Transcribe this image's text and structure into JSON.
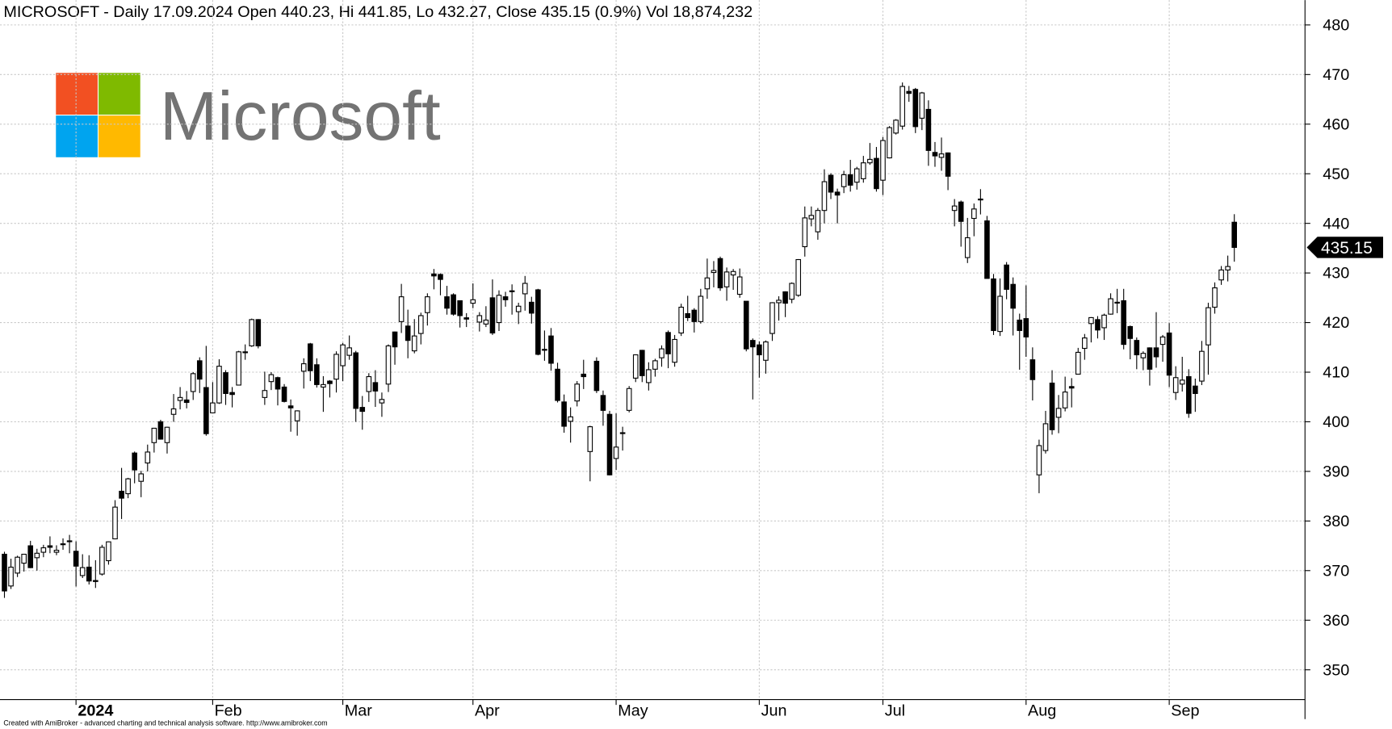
{
  "chart_data": {
    "type": "candlestick",
    "title": "MICROSOFT - Daily 17.09.2024 Open 440.23, Hi 441.85, Lo 432.27, Close 435.15 (0.9%) Vol 18,874,232",
    "categories": [
      null,
      null,
      null,
      null,
      null,
      null,
      null,
      null,
      null,
      null,
      null,
      "2024",
      null,
      null,
      null,
      null,
      null,
      null,
      null,
      null,
      null,
      null,
      null,
      null,
      null,
      null,
      null,
      null,
      null,
      null,
      null,
      null,
      "Feb",
      null,
      null,
      null,
      null,
      null,
      null,
      null,
      null,
      null,
      null,
      null,
      null,
      null,
      null,
      null,
      null,
      null,
      null,
      null,
      "Mar",
      null,
      null,
      null,
      null,
      null,
      null,
      null,
      null,
      null,
      null,
      null,
      null,
      null,
      null,
      null,
      null,
      null,
      null,
      null,
      "Apr",
      null,
      null,
      null,
      null,
      null,
      null,
      null,
      null,
      null,
      null,
      null,
      null,
      null,
      null,
      null,
      null,
      null,
      null,
      null,
      null,
      null,
      "May",
      null,
      null,
      null,
      null,
      null,
      null,
      null,
      null,
      null,
      null,
      null,
      null,
      null,
      null,
      null,
      null,
      null,
      null,
      null,
      null,
      null,
      "Jun",
      null,
      null,
      null,
      null,
      null,
      null,
      null,
      null,
      null,
      null,
      null,
      null,
      null,
      null,
      null,
      null,
      null,
      null,
      "Jul",
      null,
      null,
      null,
      null,
      null,
      null,
      null,
      null,
      null,
      null,
      null,
      null,
      null,
      null,
      null,
      null,
      null,
      null,
      null,
      null,
      null,
      "Aug",
      null,
      null,
      null,
      null,
      null,
      null,
      null,
      null,
      null,
      null,
      null,
      null,
      null,
      null,
      null,
      null,
      null,
      null,
      null,
      null,
      null,
      "Sep",
      null,
      null,
      null,
      null,
      null,
      null,
      null,
      null,
      null,
      null
    ],
    "ohlc": [
      [
        373.3,
        373.8,
        364.5,
        365.9
      ],
      [
        366.9,
        372.4,
        366.3,
        370.7
      ],
      [
        369.5,
        373.0,
        368.7,
        372.7
      ],
      [
        371.5,
        373.3,
        369.8,
        373.3
      ],
      [
        375.0,
        376.0,
        370.5,
        370.6
      ],
      [
        372.6,
        374.4,
        370.0,
        373.5
      ],
      [
        373.7,
        375.2,
        372.7,
        374.6
      ],
      [
        375.0,
        376.9,
        373.5,
        374.7
      ],
      [
        373.7,
        375.1,
        373.1,
        374.1
      ],
      [
        375.4,
        376.5,
        374.2,
        375.3
      ],
      [
        376.0,
        377.2,
        373.5,
        376.0
      ],
      [
        373.9,
        375.9,
        366.8,
        370.9
      ],
      [
        369.0,
        373.3,
        368.5,
        370.6
      ],
      [
        370.7,
        373.1,
        367.2,
        367.9
      ],
      [
        368.0,
        372.1,
        366.5,
        367.8
      ],
      [
        369.3,
        375.2,
        369.0,
        374.7
      ],
      [
        372.0,
        375.9,
        371.2,
        375.8
      ],
      [
        376.4,
        384.2,
        376.3,
        382.8
      ],
      [
        386.0,
        390.7,
        380.4,
        384.6
      ],
      [
        385.5,
        388.7,
        384.6,
        388.5
      ],
      [
        393.7,
        394.0,
        387.6,
        390.3
      ],
      [
        388.0,
        390.1,
        384.8,
        389.5
      ],
      [
        391.7,
        395.4,
        390.0,
        393.9
      ],
      [
        395.8,
        398.7,
        393.8,
        398.7
      ],
      [
        400.0,
        400.4,
        396.4,
        396.5
      ],
      [
        395.8,
        399.0,
        393.6,
        398.9
      ],
      [
        401.5,
        405.6,
        400.0,
        402.6
      ],
      [
        404.3,
        407.0,
        402.5,
        404.9
      ],
      [
        404.4,
        406.2,
        402.7,
        403.9
      ],
      [
        406.1,
        410.0,
        404.4,
        409.7
      ],
      [
        412.3,
        413.0,
        405.8,
        408.6
      ],
      [
        406.9,
        415.3,
        397.2,
        397.6
      ],
      [
        401.8,
        408.0,
        401.8,
        403.8
      ],
      [
        403.8,
        412.6,
        403.6,
        411.2
      ],
      [
        409.9,
        410.4,
        403.4,
        405.7
      ],
      [
        405.9,
        407.0,
        402.9,
        405.5
      ],
      [
        407.4,
        414.3,
        407.4,
        414.1
      ],
      [
        414.1,
        415.6,
        412.5,
        414.1
      ],
      [
        415.3,
        420.8,
        415.1,
        420.6
      ],
      [
        420.6,
        420.7,
        414.8,
        415.3
      ],
      [
        404.9,
        410.1,
        403.4,
        406.3
      ],
      [
        408.1,
        410.0,
        406.4,
        409.5
      ],
      [
        408.9,
        409.1,
        403.3,
        406.6
      ],
      [
        407.0,
        407.6,
        403.9,
        404.1
      ],
      [
        403.2,
        404.5,
        398.0,
        402.8
      ],
      [
        400.2,
        402.3,
        397.2,
        402.2
      ],
      [
        410.2,
        412.8,
        406.7,
        411.7
      ],
      [
        415.7,
        415.9,
        408.2,
        410.3
      ],
      [
        411.5,
        412.8,
        406.9,
        407.5
      ],
      [
        407.0,
        409.2,
        402.0,
        407.5
      ],
      [
        408.2,
        408.4,
        404.9,
        407.7
      ],
      [
        408.6,
        414.2,
        405.9,
        413.6
      ],
      [
        411.3,
        415.9,
        408.2,
        415.5
      ],
      [
        413.4,
        417.4,
        412.5,
        414.9
      ],
      [
        413.9,
        414.3,
        400.0,
        402.7
      ],
      [
        402.9,
        405.2,
        398.4,
        402.1
      ],
      [
        406.1,
        409.8,
        404.0,
        409.1
      ],
      [
        407.9,
        410.4,
        403.0,
        406.2
      ],
      [
        403.8,
        405.9,
        401.0,
        404.5
      ],
      [
        407.6,
        415.6,
        406.0,
        415.3
      ],
      [
        418.1,
        418.2,
        411.5,
        415.1
      ],
      [
        420.2,
        427.8,
        417.9,
        425.2
      ],
      [
        419.3,
        422.6,
        412.8,
        416.4
      ],
      [
        414.3,
        420.7,
        413.8,
        417.3
      ],
      [
        417.8,
        422.0,
        415.6,
        421.4
      ],
      [
        422.0,
        425.9,
        419.4,
        425.2
      ],
      [
        429.8,
        430.8,
        426.7,
        429.4
      ],
      [
        429.7,
        429.9,
        425.5,
        428.7
      ],
      [
        425.2,
        427.4,
        421.6,
        422.9
      ],
      [
        425.6,
        425.9,
        421.4,
        421.7
      ],
      [
        424.4,
        424.4,
        419.0,
        421.4
      ],
      [
        420.96,
        421.9,
        419.1,
        420.7
      ],
      [
        423.9,
        427.9,
        422.9,
        424.6
      ],
      [
        420.1,
        422.1,
        418.2,
        421.4
      ],
      [
        419.7,
        423.3,
        419.1,
        420.5
      ],
      [
        424.99,
        428.7,
        417.5,
        417.9
      ],
      [
        420.0,
        426.5,
        418.3,
        425.5
      ],
      [
        425.2,
        426.2,
        423.2,
        424.6
      ],
      [
        426.4,
        427.7,
        421.6,
        426.3
      ],
      [
        422.2,
        424.0,
        419.7,
        423.3
      ],
      [
        425.8,
        429.4,
        422.4,
        427.9
      ],
      [
        424.1,
        425.2,
        419.8,
        421.9
      ],
      [
        426.6,
        426.8,
        413.4,
        413.6
      ],
      [
        414.6,
        418.4,
        412.3,
        414.6
      ],
      [
        417.3,
        418.9,
        410.3,
        411.8
      ],
      [
        410.6,
        411.9,
        403.9,
        404.3
      ],
      [
        404.0,
        405.5,
        397.8,
        399.1
      ],
      [
        400.1,
        402.9,
        395.8,
        401.0
      ],
      [
        404.2,
        408.2,
        403.1,
        407.6
      ],
      [
        409.6,
        412.5,
        406.6,
        409.1
      ],
      [
        394.0,
        399.2,
        388.0,
        399.0
      ],
      [
        412.2,
        413.0,
        405.8,
        406.3
      ],
      [
        405.3,
        406.3,
        399.2,
        402.3
      ],
      [
        401.5,
        402.2,
        389.2,
        389.3
      ],
      [
        392.6,
        401.7,
        390.3,
        394.9
      ],
      [
        397.7,
        399.0,
        394.2,
        397.8
      ],
      [
        402.3,
        407.2,
        401.9,
        406.7
      ],
      [
        408.8,
        413.6,
        408.0,
        413.5
      ],
      [
        414.4,
        414.5,
        408.0,
        409.3
      ],
      [
        407.9,
        412.0,
        406.3,
        410.5
      ],
      [
        410.6,
        412.7,
        409.1,
        412.3
      ],
      [
        412.9,
        415.4,
        411.1,
        414.7
      ],
      [
        418.0,
        418.4,
        410.8,
        413.7
      ],
      [
        412.0,
        417.5,
        411.1,
        416.6
      ],
      [
        417.9,
        423.8,
        417.3,
        423.1
      ],
      [
        421.8,
        425.4,
        420.3,
        421.0
      ],
      [
        422.5,
        422.9,
        418.0,
        420.2
      ],
      [
        420.2,
        426.8,
        419.8,
        425.3
      ],
      [
        426.8,
        432.9,
        424.8,
        429.0
      ],
      [
        430.1,
        432.4,
        427.1,
        430.5
      ],
      [
        432.9,
        433.3,
        426.4,
        427.0
      ],
      [
        427.2,
        431.1,
        424.4,
        430.2
      ],
      [
        429.6,
        430.8,
        426.6,
        430.3
      ],
      [
        425.7,
        430.9,
        425.0,
        429.2
      ],
      [
        424.3,
        424.3,
        414.2,
        414.7
      ],
      [
        416.4,
        416.8,
        404.5,
        415.1
      ],
      [
        415.5,
        416.2,
        408.9,
        413.5
      ],
      [
        412.4,
        416.4,
        409.7,
        416.1
      ],
      [
        417.8,
        424.1,
        416.3,
        424.0
      ],
      [
        424.0,
        425.3,
        420.4,
        424.5
      ],
      [
        426.2,
        426.3,
        421.1,
        423.9
      ],
      [
        424.7,
        428.1,
        423.9,
        427.9
      ],
      [
        425.5,
        432.8,
        425.2,
        432.7
      ],
      [
        435.3,
        443.4,
        433.3,
        441.1
      ],
      [
        440.9,
        443.4,
        439.4,
        441.6
      ],
      [
        438.3,
        443.1,
        436.7,
        442.6
      ],
      [
        442.6,
        450.9,
        440.0,
        448.4
      ],
      [
        449.7,
        450.1,
        444.9,
        446.3
      ],
      [
        446.3,
        447.0,
        440.0,
        445.7
      ],
      [
        447.4,
        450.6,
        446.1,
        449.8
      ],
      [
        449.8,
        452.8,
        446.4,
        447.7
      ],
      [
        448.3,
        451.4,
        446.8,
        451.0
      ],
      [
        449.0,
        453.6,
        448.2,
        452.2
      ],
      [
        452.2,
        456.2,
        451.8,
        452.9
      ],
      [
        453.1,
        455.4,
        446.4,
        447.0
      ],
      [
        448.7,
        457.4,
        445.7,
        456.7
      ],
      [
        453.2,
        459.6,
        453.1,
        459.3
      ],
      [
        458.2,
        461.0,
        457.9,
        460.8
      ],
      [
        459.6,
        468.4,
        458.9,
        467.6
      ],
      [
        466.6,
        467.7,
        464.5,
        466.2
      ],
      [
        467.0,
        467.3,
        458.2,
        459.5
      ],
      [
        461.2,
        466.5,
        458.8,
        466.3
      ],
      [
        462.98,
        464.8,
        451.6,
        454.7
      ],
      [
        454.3,
        456.4,
        451.4,
        453.6
      ],
      [
        453.3,
        457.3,
        450.6,
        454.0
      ],
      [
        454.2,
        454.3,
        446.7,
        449.5
      ],
      [
        442.6,
        444.9,
        439.4,
        443.5
      ],
      [
        444.3,
        444.6,
        435.3,
        440.4
      ],
      [
        433.1,
        441.1,
        432.0,
        437.1
      ],
      [
        441.0,
        444.0,
        437.4,
        442.9
      ],
      [
        444.9,
        446.9,
        441.8,
        444.9
      ],
      [
        440.5,
        441.5,
        428.9,
        428.9
      ],
      [
        428.8,
        429.8,
        417.5,
        418.4
      ],
      [
        418.2,
        428.9,
        417.3,
        425.3
      ],
      [
        431.6,
        432.2,
        424.7,
        426.7
      ],
      [
        427.7,
        429.1,
        417.4,
        422.9
      ],
      [
        420.5,
        421.8,
        410.5,
        418.4
      ],
      [
        420.8,
        427.5,
        413.1,
        417.1
      ],
      [
        412.5,
        415.0,
        404.3,
        408.5
      ],
      [
        389.3,
        396.4,
        385.6,
        395.2
      ],
      [
        394.2,
        402.2,
        393.6,
        399.6
      ],
      [
        407.8,
        410.4,
        397.4,
        398.4
      ],
      [
        400.9,
        405.4,
        397.7,
        402.7
      ],
      [
        402.8,
        409.1,
        402.1,
        406.0
      ],
      [
        407.1,
        408.8,
        402.9,
        406.8
      ],
      [
        409.6,
        414.9,
        409.6,
        414.0
      ],
      [
        414.8,
        417.7,
        412.5,
        416.9
      ],
      [
        419.8,
        421.1,
        416.0,
        421.0
      ],
      [
        420.6,
        421.3,
        416.8,
        418.5
      ],
      [
        418.96,
        421.8,
        416.5,
        421.5
      ],
      [
        421.7,
        425.9,
        421.6,
        424.8
      ],
      [
        424.1,
        426.8,
        421.9,
        424.1
      ],
      [
        424.4,
        426.8,
        414.6,
        415.6
      ],
      [
        419.2,
        419.4,
        412.6,
        416.8
      ],
      [
        416.4,
        417.0,
        410.6,
        413.5
      ],
      [
        412.9,
        414.2,
        410.4,
        413.8
      ],
      [
        414.9,
        415.0,
        407.3,
        410.6
      ],
      [
        414.9,
        422.1,
        410.9,
        413.1
      ],
      [
        415.6,
        417.5,
        412.1,
        417.1
      ],
      [
        417.9,
        419.9,
        407.0,
        409.4
      ],
      [
        405.9,
        411.2,
        404.4,
        408.9
      ],
      [
        407.6,
        413.1,
        406.1,
        408.4
      ],
      [
        409.1,
        410.6,
        400.8,
        401.7
      ],
      [
        407.2,
        408.7,
        402.0,
        405.7
      ],
      [
        408.2,
        416.3,
        407.4,
        414.2
      ],
      [
        415.5,
        424.0,
        409.5,
        423.0
      ],
      [
        423.1,
        428.1,
        421.8,
        427.0
      ],
      [
        428.6,
        431.4,
        427.6,
        430.6
      ],
      [
        430.6,
        433.5,
        428.3,
        431.3
      ],
      [
        440.23,
        441.85,
        432.27,
        435.15
      ]
    ],
    "ylim": [
      344,
      485
    ],
    "yticks": [
      350,
      360,
      370,
      380,
      390,
      400,
      410,
      420,
      430,
      440,
      450,
      460,
      470,
      480
    ],
    "grid": true,
    "up_color": "#ffffff",
    "down_color": "#000000"
  },
  "logo_text": "Microsoft",
  "credit": "Created with AmiBroker - advanced charting and technical analysis software. http://www.amibroker.com"
}
